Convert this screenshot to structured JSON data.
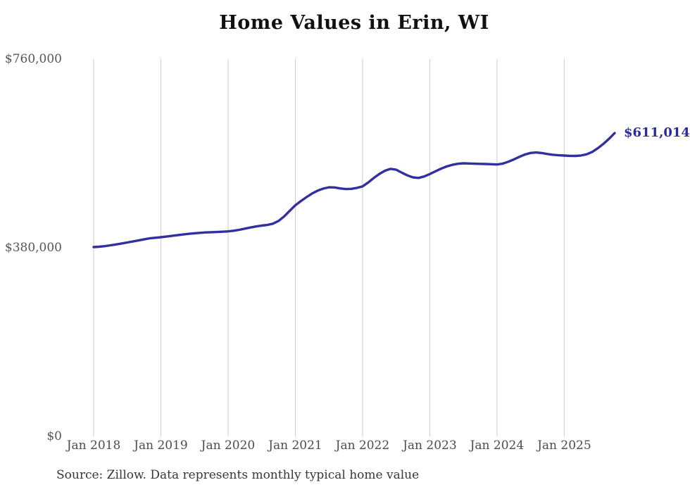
{
  "title": "Home Values in Erin, WI",
  "source_note": "Source: Zillow. Data represents monthly typical home value",
  "colors": {
    "line": "#332f9e",
    "grid": "#cccccc",
    "end_label": "#2b2a9c",
    "title_text": "#111111",
    "axis_text": "#565656"
  },
  "chart_data": {
    "type": "line",
    "title": "Home Values in Erin, WI",
    "xlabel": "",
    "ylabel": "",
    "ylim": [
      0,
      760000
    ],
    "grid": "vertical-only",
    "legend": "none",
    "source": "Source: Zillow. Data represents monthly typical home value",
    "annotation": {
      "label": "$611,014",
      "value": 611014,
      "position": "end-of-line"
    },
    "y_ticks": [
      {
        "label": "$0",
        "value": 0
      },
      {
        "label": "$380,000",
        "value": 380000
      },
      {
        "label": "$760,000",
        "value": 760000
      }
    ],
    "x_tick_labels": [
      "Jan 2018",
      "Jan 2019",
      "Jan 2020",
      "Jan 2021",
      "Jan 2022",
      "Jan 2023",
      "Jan 2024",
      "Jan 2025"
    ],
    "x_tick_indices": [
      0,
      12,
      24,
      36,
      48,
      60,
      72,
      84
    ],
    "x": [
      "Jan 2018",
      "Feb 2018",
      "Mar 2018",
      "Apr 2018",
      "May 2018",
      "Jun 2018",
      "Jul 2018",
      "Aug 2018",
      "Sep 2018",
      "Oct 2018",
      "Nov 2018",
      "Dec 2018",
      "Jan 2019",
      "Feb 2019",
      "Mar 2019",
      "Apr 2019",
      "May 2019",
      "Jun 2019",
      "Jul 2019",
      "Aug 2019",
      "Sep 2019",
      "Oct 2019",
      "Nov 2019",
      "Dec 2019",
      "Jan 2020",
      "Feb 2020",
      "Mar 2020",
      "Apr 2020",
      "May 2020",
      "Jun 2020",
      "Jul 2020",
      "Aug 2020",
      "Sep 2020",
      "Oct 2020",
      "Nov 2020",
      "Dec 2020",
      "Jan 2021",
      "Feb 2021",
      "Mar 2021",
      "Apr 2021",
      "May 2021",
      "Jun 2021",
      "Jul 2021",
      "Aug 2021",
      "Sep 2021",
      "Oct 2021",
      "Nov 2021",
      "Dec 2021",
      "Jan 2022",
      "Feb 2022",
      "Mar 2022",
      "Apr 2022",
      "May 2022",
      "Jun 2022",
      "Jul 2022",
      "Aug 2022",
      "Sep 2022",
      "Oct 2022",
      "Nov 2022",
      "Dec 2022",
      "Jan 2023",
      "Feb 2023",
      "Mar 2023",
      "Apr 2023",
      "May 2023",
      "Jun 2023",
      "Jul 2023",
      "Aug 2023",
      "Sep 2023",
      "Oct 2023",
      "Nov 2023",
      "Dec 2023",
      "Jan 2024",
      "Feb 2024",
      "Mar 2024",
      "Apr 2024",
      "May 2024",
      "Jun 2024",
      "Jul 2024",
      "Aug 2024",
      "Sep 2024",
      "Oct 2024",
      "Nov 2024",
      "Dec 2024",
      "Jan 2025",
      "Feb 2025",
      "Mar 2025",
      "Apr 2025",
      "May 2025",
      "Jun 2025",
      "Jul 2025",
      "Aug 2025",
      "Sep 2025",
      "Oct 2025"
    ],
    "series": [
      {
        "name": "Typical home value",
        "values": [
          381400,
          382100,
          383300,
          384900,
          386700,
          388600,
          390600,
          392600,
          394700,
          396900,
          399000,
          400200,
          401300,
          402600,
          404000,
          405400,
          406800,
          408100,
          409200,
          410100,
          410900,
          411400,
          411800,
          412300,
          413100,
          414300,
          416100,
          418500,
          420900,
          423000,
          424600,
          426000,
          428500,
          434000,
          443000,
          454500,
          465600,
          474100,
          482100,
          489300,
          495100,
          499300,
          501800,
          501500,
          499600,
          498200,
          498700,
          500600,
          503600,
          511500,
          520500,
          528800,
          535300,
          538900,
          537200,
          531500,
          525800,
          521800,
          520700,
          523600,
          528400,
          534000,
          539300,
          543800,
          547100,
          549200,
          550100,
          549700,
          549300,
          549000,
          548700,
          548300,
          547700,
          549500,
          553200,
          558000,
          563200,
          567900,
          571000,
          572000,
          570800,
          568900,
          567300,
          566300,
          565800,
          565200,
          565100,
          565900,
          568300,
          573100,
          580500,
          589400,
          599500,
          611014
        ]
      }
    ]
  }
}
